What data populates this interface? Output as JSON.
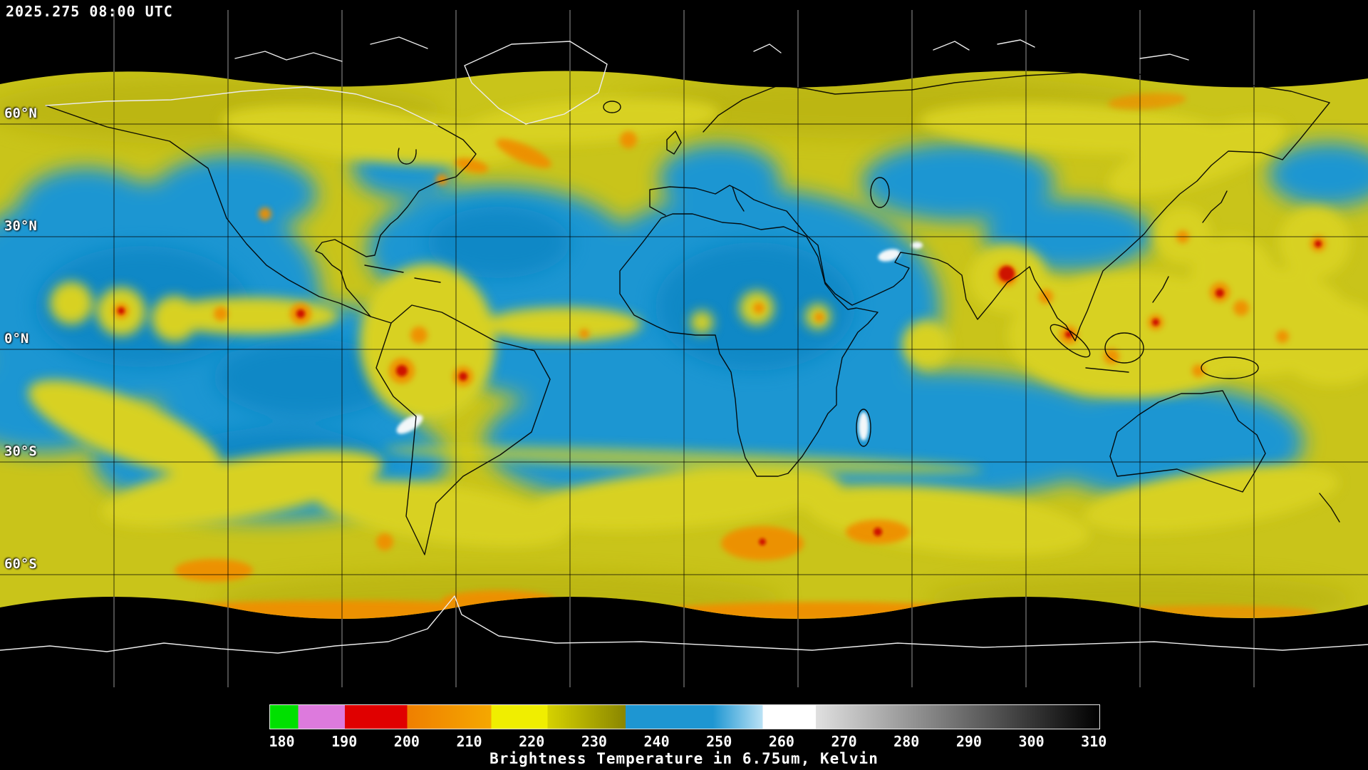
{
  "header": {
    "timestamp": "2025.275 08:00 UTC"
  },
  "map": {
    "latitude_labels": [
      "60°N",
      "30°N",
      "0°N",
      "30°S",
      "60°S"
    ],
    "longitude_grid_interval_deg": 30,
    "latitude_grid_interval_deg": 30
  },
  "colorbar": {
    "title": "Brightness Temperature in 6.75um, Kelvin",
    "unit": "Kelvin",
    "ticks": [
      180,
      190,
      200,
      210,
      220,
      230,
      240,
      250,
      260,
      270,
      280,
      290,
      300,
      310
    ],
    "min": 178,
    "max": 311,
    "segments": [
      {
        "from": 178,
        "to": 182.5,
        "color": "#00e000"
      },
      {
        "from": 182.5,
        "to": 190,
        "color": "#dd7add"
      },
      {
        "from": 190,
        "to": 200,
        "color": "#e00000"
      },
      {
        "from": 200,
        "to": 213.5,
        "color": "#ef7f00",
        "to_color": "#f5a800"
      },
      {
        "from": 213.5,
        "to": 222.5,
        "color": "#f0ee00"
      },
      {
        "from": 222.5,
        "to": 235,
        "color": "#d6d200",
        "to_color": "#8a8600"
      },
      {
        "from": 235,
        "to": 249,
        "color": "#1e96d2"
      },
      {
        "from": 249,
        "to": 257,
        "color": "#1e96d2",
        "to_color": "#bae2f5"
      },
      {
        "from": 257,
        "to": 265.5,
        "color": "#ffffff"
      },
      {
        "from": 265.5,
        "to": 311,
        "color": "#e0e0e0",
        "to_color": "#000000"
      }
    ]
  },
  "palette": {
    "bg": "#000000",
    "moist": "#c9c41a",
    "moist-dark": "#b2ac10",
    "moist-bright": "#d8d120",
    "dry": "#1e96d2",
    "dry-deep": "#0f86c4",
    "convection": "#ef8f00",
    "deep-convection": "#cc1100",
    "very-warm": "#f3f7f9",
    "grid-space": "#c0c0c0",
    "grid-data": "#000000",
    "coast": "#000000",
    "coast-polar": "#ebebeb",
    "text": "#ffffff"
  }
}
